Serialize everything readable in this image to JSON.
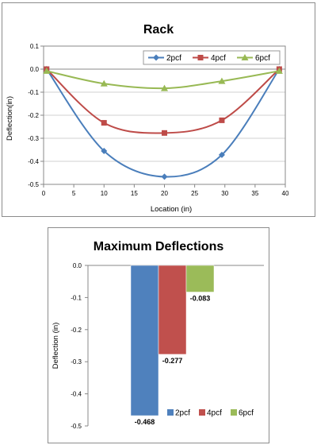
{
  "chart_data": [
    {
      "type": "line",
      "title": "Rack",
      "xlabel": "Location (in)",
      "ylabel": "Deflection(in)",
      "xlim": [
        0,
        40
      ],
      "ylim": [
        -0.5,
        0.1
      ],
      "x_ticks": [
        "0",
        "5",
        "10",
        "15",
        "20",
        "25",
        "30",
        "35",
        "40"
      ],
      "y_ticks": [
        "0.1",
        "0.0",
        "-0.1",
        "-0.2",
        "-0.3",
        "-0.4",
        "-0.5"
      ],
      "grid": "horizontal",
      "legend_position": "top-right",
      "series": [
        {
          "name": "2pcf",
          "color": "#4a7ebb",
          "marker": "diamond",
          "x": [
            0.5,
            10,
            20,
            29.5,
            39
          ],
          "y": [
            0.0,
            -0.355,
            -0.467,
            -0.372,
            0.0
          ]
        },
        {
          "name": "4pcf",
          "color": "#be4b48",
          "marker": "square",
          "x": [
            0.5,
            10,
            20,
            29.5,
            39
          ],
          "y": [
            0.0,
            -0.233,
            -0.277,
            -0.222,
            0.0
          ]
        },
        {
          "name": "6pcf",
          "color": "#98b954",
          "marker": "triangle",
          "x": [
            0.5,
            10,
            20,
            29.5,
            39
          ],
          "y": [
            -0.008,
            -0.063,
            -0.083,
            -0.052,
            -0.008
          ]
        }
      ]
    },
    {
      "type": "bar",
      "title": "Maximum Deflections",
      "ylabel": "Deflection (in)",
      "ylim": [
        -0.5,
        0.0
      ],
      "y_ticks": [
        "0.0",
        "-0.1",
        "-0.2",
        "-0.3",
        "-0.4",
        "-0.5"
      ],
      "grid": "none",
      "legend_position": "bottom-right",
      "series": [
        {
          "name": "2pcf",
          "color": "#4f81bd",
          "value": -0.468,
          "label": "-0.468"
        },
        {
          "name": "4pcf",
          "color": "#c0504d",
          "value": -0.277,
          "label": "-0.277"
        },
        {
          "name": "6pcf",
          "color": "#9bbb59",
          "value": -0.083,
          "label": "-0.083"
        }
      ]
    }
  ]
}
